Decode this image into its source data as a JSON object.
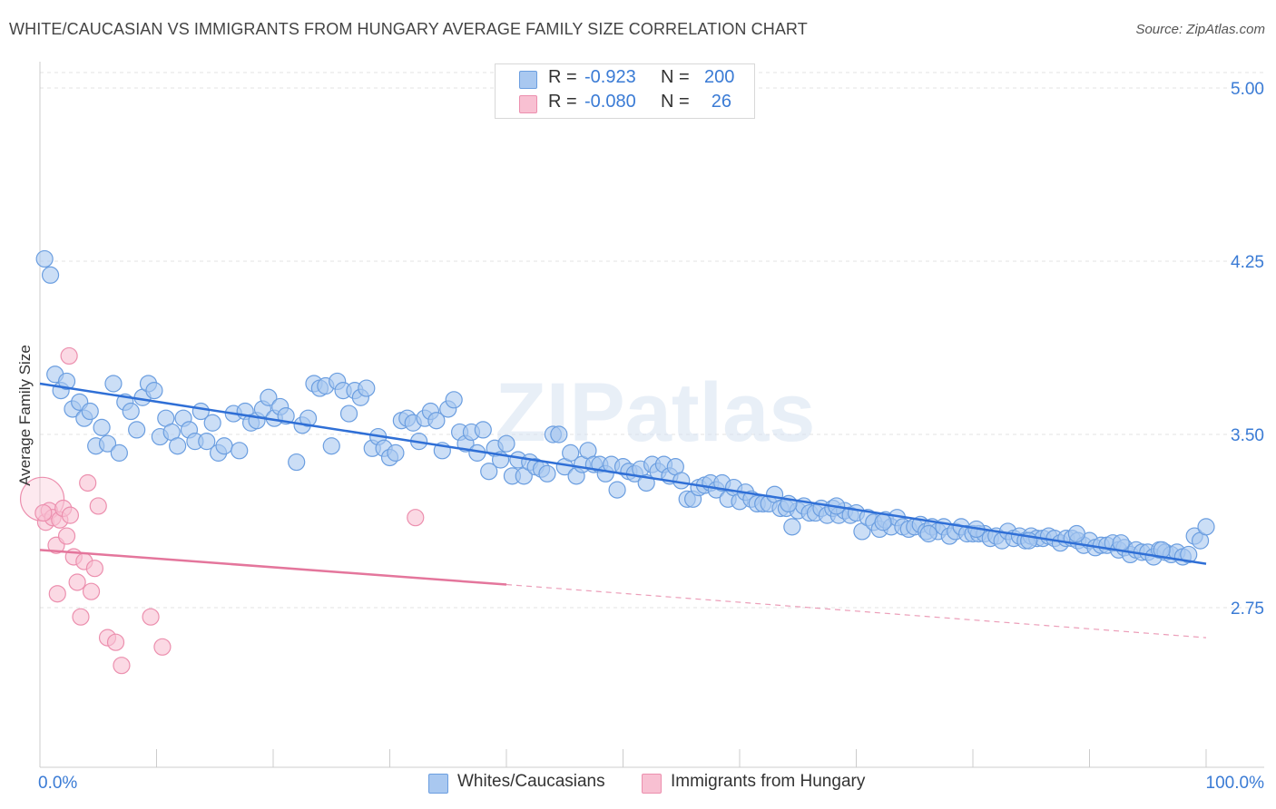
{
  "title": "WHITE/CAUCASIAN VS IMMIGRANTS FROM HUNGARY AVERAGE FAMILY SIZE CORRELATION CHART",
  "source": "Source: ZipAtlas.com",
  "watermark": "ZIPatlas",
  "legend_top": [
    {
      "r_label": "R =",
      "r_value": "-0.923",
      "n_label": "N =",
      "n_value": "200"
    },
    {
      "r_label": "R =",
      "r_value": "-0.080",
      "n_label": "N =",
      "n_value": "26"
    }
  ],
  "legend_bottom": [
    {
      "label": "Whites/Caucasians"
    },
    {
      "label": "Immigrants from Hungary"
    }
  ],
  "colors": {
    "blue_fill": "#a9c8f0",
    "blue_stroke": "#6b9ee0",
    "blue_line": "#2f6fd6",
    "pink_fill": "#f8c0d2",
    "pink_stroke": "#ec8fae",
    "pink_line": "#e4769c",
    "axis_text": "#3a7bd5",
    "grid": "#e3e3e3"
  },
  "chart_data": {
    "type": "scatter",
    "title": "WHITE/CAUCASIAN VS IMMIGRANTS FROM HUNGARY AVERAGE FAMILY SIZE CORRELATION CHART",
    "xlabel": "",
    "ylabel": "Average Family Size",
    "xlim": [
      0,
      100
    ],
    "ylim": [
      2.0,
      5.15
    ],
    "x_tick_labels": [
      "0.0%",
      "100.0%"
    ],
    "y_ticks": [
      2.75,
      3.5,
      4.25,
      5.0
    ],
    "y_tick_labels": [
      "2.75",
      "3.50",
      "4.25",
      "5.00"
    ],
    "grid": true,
    "legend_position": "top-center",
    "series": [
      {
        "name": "Whites/Caucasians",
        "r": -0.923,
        "n": 200,
        "trend": {
          "x": [
            0,
            100
          ],
          "y": [
            3.72,
            2.94
          ]
        },
        "points": [
          [
            0.4,
            4.26
          ],
          [
            0.9,
            4.19
          ],
          [
            1.3,
            3.76
          ],
          [
            1.8,
            3.69
          ],
          [
            2.3,
            3.73
          ],
          [
            2.8,
            3.61
          ],
          [
            3.4,
            3.64
          ],
          [
            3.8,
            3.57
          ],
          [
            4.3,
            3.6
          ],
          [
            4.8,
            3.45
          ],
          [
            5.3,
            3.53
          ],
          [
            5.8,
            3.46
          ],
          [
            6.3,
            3.72
          ],
          [
            6.8,
            3.42
          ],
          [
            7.3,
            3.64
          ],
          [
            7.8,
            3.6
          ],
          [
            8.3,
            3.52
          ],
          [
            8.8,
            3.66
          ],
          [
            9.3,
            3.72
          ],
          [
            9.8,
            3.69
          ],
          [
            10.3,
            3.49
          ],
          [
            10.8,
            3.57
          ],
          [
            11.3,
            3.51
          ],
          [
            11.8,
            3.45
          ],
          [
            12.3,
            3.57
          ],
          [
            12.8,
            3.52
          ],
          [
            13.3,
            3.47
          ],
          [
            13.8,
            3.6
          ],
          [
            14.3,
            3.47
          ],
          [
            14.8,
            3.55
          ],
          [
            15.3,
            3.42
          ],
          [
            15.8,
            3.45
          ],
          [
            16.6,
            3.59
          ],
          [
            17.1,
            3.43
          ],
          [
            17.6,
            3.6
          ],
          [
            18.1,
            3.55
          ],
          [
            18.6,
            3.56
          ],
          [
            19.1,
            3.61
          ],
          [
            19.6,
            3.66
          ],
          [
            20.1,
            3.57
          ],
          [
            20.6,
            3.62
          ],
          [
            21.1,
            3.58
          ],
          [
            22.0,
            3.38
          ],
          [
            22.5,
            3.54
          ],
          [
            23.0,
            3.57
          ],
          [
            23.5,
            3.72
          ],
          [
            24.0,
            3.7
          ],
          [
            24.5,
            3.71
          ],
          [
            25.0,
            3.45
          ],
          [
            25.5,
            3.73
          ],
          [
            26.0,
            3.69
          ],
          [
            26.5,
            3.59
          ],
          [
            27.0,
            3.69
          ],
          [
            27.5,
            3.66
          ],
          [
            28.0,
            3.7
          ],
          [
            28.5,
            3.44
          ],
          [
            29.0,
            3.49
          ],
          [
            29.5,
            3.44
          ],
          [
            30.0,
            3.4
          ],
          [
            30.5,
            3.42
          ],
          [
            31.0,
            3.56
          ],
          [
            31.5,
            3.57
          ],
          [
            32.0,
            3.55
          ],
          [
            32.5,
            3.47
          ],
          [
            33.0,
            3.57
          ],
          [
            33.5,
            3.6
          ],
          [
            34.0,
            3.56
          ],
          [
            34.5,
            3.43
          ],
          [
            35.0,
            3.61
          ],
          [
            35.5,
            3.65
          ],
          [
            36.0,
            3.51
          ],
          [
            36.5,
            3.46
          ],
          [
            37.0,
            3.51
          ],
          [
            37.5,
            3.42
          ],
          [
            38.0,
            3.52
          ],
          [
            38.5,
            3.34
          ],
          [
            39.0,
            3.44
          ],
          [
            39.5,
            3.39
          ],
          [
            40.0,
            3.46
          ],
          [
            40.5,
            3.32
          ],
          [
            41.0,
            3.39
          ],
          [
            41.5,
            3.32
          ],
          [
            42.0,
            3.38
          ],
          [
            42.5,
            3.36
          ],
          [
            43.0,
            3.35
          ],
          [
            43.5,
            3.33
          ],
          [
            44.0,
            3.5
          ],
          [
            44.5,
            3.5
          ],
          [
            45.0,
            3.36
          ],
          [
            45.5,
            3.42
          ],
          [
            46.0,
            3.32
          ],
          [
            46.5,
            3.37
          ],
          [
            47.0,
            3.43
          ],
          [
            47.5,
            3.37
          ],
          [
            48.0,
            3.37
          ],
          [
            48.5,
            3.33
          ],
          [
            49.0,
            3.37
          ],
          [
            49.5,
            3.26
          ],
          [
            50.0,
            3.36
          ],
          [
            50.5,
            3.34
          ],
          [
            51.0,
            3.33
          ],
          [
            51.5,
            3.35
          ],
          [
            52.0,
            3.29
          ],
          [
            52.5,
            3.37
          ],
          [
            53.0,
            3.34
          ],
          [
            53.5,
            3.37
          ],
          [
            54.0,
            3.32
          ],
          [
            54.5,
            3.36
          ],
          [
            55.0,
            3.3
          ],
          [
            55.5,
            3.22
          ],
          [
            56.0,
            3.22
          ],
          [
            56.5,
            3.27
          ],
          [
            57.0,
            3.28
          ],
          [
            57.5,
            3.29
          ],
          [
            58.0,
            3.26
          ],
          [
            58.5,
            3.29
          ],
          [
            59.0,
            3.22
          ],
          [
            59.5,
            3.27
          ],
          [
            60.0,
            3.21
          ],
          [
            60.5,
            3.25
          ],
          [
            61.0,
            3.22
          ],
          [
            61.5,
            3.2
          ],
          [
            62.0,
            3.2
          ],
          [
            62.5,
            3.2
          ],
          [
            63.0,
            3.24
          ],
          [
            63.5,
            3.18
          ],
          [
            64.0,
            3.18
          ],
          [
            64.5,
            3.1
          ],
          [
            65.0,
            3.17
          ],
          [
            65.5,
            3.19
          ],
          [
            66.0,
            3.16
          ],
          [
            66.5,
            3.16
          ],
          [
            67.0,
            3.18
          ],
          [
            67.5,
            3.15
          ],
          [
            68.0,
            3.18
          ],
          [
            68.5,
            3.15
          ],
          [
            69.0,
            3.17
          ],
          [
            69.5,
            3.15
          ],
          [
            70.0,
            3.16
          ],
          [
            70.5,
            3.08
          ],
          [
            71.0,
            3.14
          ],
          [
            71.5,
            3.12
          ],
          [
            72.0,
            3.09
          ],
          [
            72.5,
            3.13
          ],
          [
            73.0,
            3.1
          ],
          [
            73.5,
            3.14
          ],
          [
            74.0,
            3.1
          ],
          [
            74.5,
            3.09
          ],
          [
            75.0,
            3.1
          ],
          [
            75.5,
            3.11
          ],
          [
            76.0,
            3.08
          ],
          [
            76.5,
            3.1
          ],
          [
            77.0,
            3.08
          ],
          [
            77.5,
            3.1
          ],
          [
            78.0,
            3.06
          ],
          [
            78.5,
            3.08
          ],
          [
            79.0,
            3.1
          ],
          [
            79.5,
            3.07
          ],
          [
            80.0,
            3.07
          ],
          [
            80.5,
            3.07
          ],
          [
            81.0,
            3.07
          ],
          [
            81.5,
            3.05
          ],
          [
            82.0,
            3.06
          ],
          [
            82.5,
            3.04
          ],
          [
            83.0,
            3.08
          ],
          [
            83.5,
            3.05
          ],
          [
            84.0,
            3.06
          ],
          [
            84.5,
            3.04
          ],
          [
            85.0,
            3.06
          ],
          [
            85.5,
            3.05
          ],
          [
            86.0,
            3.05
          ],
          [
            86.5,
            3.06
          ],
          [
            87.0,
            3.05
          ],
          [
            87.5,
            3.03
          ],
          [
            88.0,
            3.05
          ],
          [
            88.5,
            3.05
          ],
          [
            89.0,
            3.04
          ],
          [
            89.5,
            3.02
          ],
          [
            90.0,
            3.04
          ],
          [
            90.5,
            3.01
          ],
          [
            91.0,
            3.02
          ],
          [
            91.5,
            3.02
          ],
          [
            92.0,
            3.03
          ],
          [
            92.5,
            3.0
          ],
          [
            93.0,
            3.01
          ],
          [
            93.5,
            2.98
          ],
          [
            94.0,
            3.0
          ],
          [
            94.5,
            2.99
          ],
          [
            95.0,
            2.99
          ],
          [
            95.5,
            2.97
          ],
          [
            96.0,
            3.0
          ],
          [
            96.5,
            2.99
          ],
          [
            97.0,
            2.98
          ],
          [
            97.5,
            2.99
          ],
          [
            98.0,
            2.97
          ],
          [
            98.5,
            2.98
          ],
          [
            99.0,
            3.06
          ],
          [
            99.5,
            3.04
          ],
          [
            100.0,
            3.1
          ],
          [
            96.2,
            3.0
          ],
          [
            92.7,
            3.03
          ],
          [
            88.9,
            3.07
          ],
          [
            84.8,
            3.04
          ],
          [
            80.3,
            3.09
          ],
          [
            76.2,
            3.07
          ],
          [
            72.3,
            3.12
          ],
          [
            68.3,
            3.19
          ],
          [
            64.2,
            3.2
          ]
        ]
      },
      {
        "name": "Immigrants from Hungary",
        "r": -0.08,
        "n": 26,
        "trend": {
          "x": [
            0,
            40
          ],
          "y": [
            3.0,
            2.85
          ],
          "dashed_to": [
            100,
            2.62
          ]
        },
        "points": [
          [
            0.2,
            3.22
          ],
          [
            0.5,
            3.12
          ],
          [
            0.8,
            3.17
          ],
          [
            1.1,
            3.14
          ],
          [
            1.4,
            3.02
          ],
          [
            1.7,
            3.13
          ],
          [
            2.0,
            3.18
          ],
          [
            2.3,
            3.06
          ],
          [
            2.6,
            3.15
          ],
          [
            2.9,
            2.97
          ],
          [
            3.2,
            2.86
          ],
          [
            3.5,
            2.71
          ],
          [
            3.8,
            2.95
          ],
          [
            4.1,
            3.29
          ],
          [
            4.4,
            2.82
          ],
          [
            4.7,
            2.92
          ],
          [
            5.0,
            3.19
          ],
          [
            1.5,
            2.81
          ],
          [
            5.8,
            2.62
          ],
          [
            6.5,
            2.6
          ],
          [
            7.0,
            2.5
          ],
          [
            9.5,
            2.71
          ],
          [
            10.5,
            2.58
          ],
          [
            2.5,
            3.84
          ],
          [
            0.3,
            3.16
          ],
          [
            32.2,
            3.14
          ]
        ]
      }
    ]
  }
}
